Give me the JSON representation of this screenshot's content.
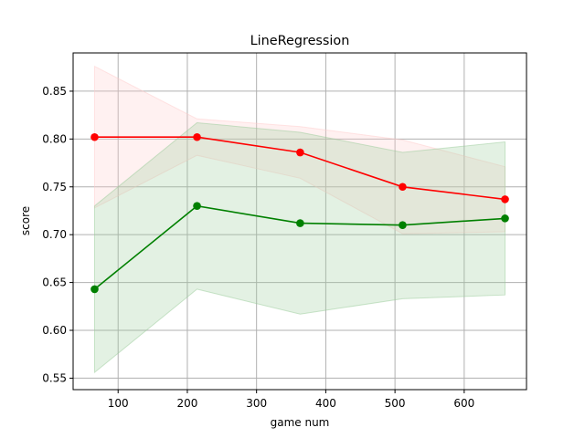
{
  "chart_data": {
    "type": "line",
    "title": "LineRegression",
    "xlabel": "game num",
    "ylabel": "score",
    "xlim": [
      35,
      690
    ],
    "ylim": [
      0.538,
      0.89
    ],
    "xticks": [
      100,
      200,
      300,
      400,
      500,
      600
    ],
    "yticks": [
      0.55,
      0.6,
      0.65,
      0.7,
      0.75,
      0.8,
      0.85
    ],
    "ytick_labels": [
      "0.55",
      "0.60",
      "0.65",
      "0.70",
      "0.75",
      "0.80",
      "0.85"
    ],
    "grid": true,
    "x": [
      66,
      214,
      363,
      511,
      659
    ],
    "series": [
      {
        "color": "#ff0000",
        "band_color": "#ffcccc",
        "values": [
          0.802,
          0.802,
          0.786,
          0.75,
          0.737
        ],
        "upper": [
          0.876,
          0.821,
          0.813,
          0.799,
          0.771
        ],
        "lower": [
          0.728,
          0.783,
          0.759,
          0.701,
          0.703
        ]
      },
      {
        "color": "#008000",
        "band_color": "#99cc99",
        "values": [
          0.643,
          0.73,
          0.712,
          0.71,
          0.717
        ],
        "upper": [
          0.73,
          0.817,
          0.807,
          0.786,
          0.797
        ],
        "lower": [
          0.556,
          0.643,
          0.617,
          0.633,
          0.637
        ]
      }
    ]
  }
}
